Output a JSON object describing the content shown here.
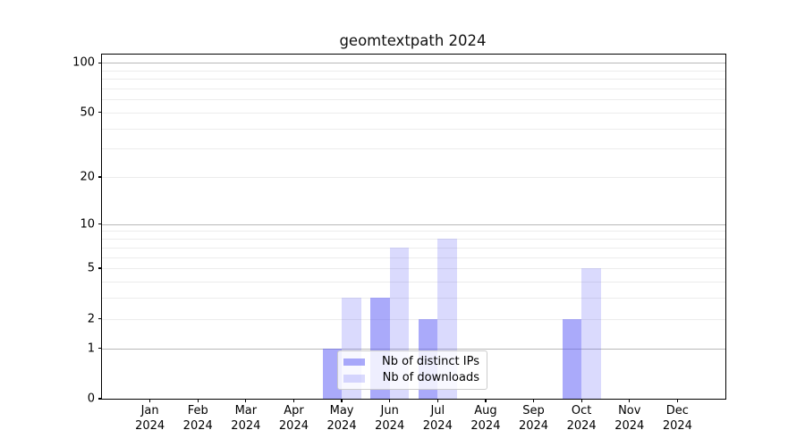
{
  "title": "geomtextpath 2024",
  "colors": {
    "bar_distinct_ips": "rgba(85,85,245,0.5)",
    "bar_downloads": "rgba(85,85,245,0.22)",
    "major_gridline": "#b8b8b8",
    "minor_gridline": "#ececec",
    "spine": "#000000",
    "legend_border": "#cccccc"
  },
  "chart_data": {
    "type": "bar",
    "title": "geomtextpath 2024",
    "categories": [
      "Jan",
      "Feb",
      "Mar",
      "Apr",
      "May",
      "Jun",
      "Jul",
      "Aug",
      "Sep",
      "Oct",
      "Nov",
      "Dec"
    ],
    "category_year": "2024",
    "series": [
      {
        "name": "Nb of distinct IPs",
        "color": "rgba(85,85,245,0.5)",
        "values": [
          0,
          0,
          0,
          0,
          1,
          3,
          2,
          0,
          0,
          2,
          0,
          0
        ]
      },
      {
        "name": "Nb of downloads",
        "color": "rgba(85,85,245,0.22)",
        "values": [
          0,
          0,
          0,
          0,
          3,
          7,
          8,
          0,
          0,
          5,
          0,
          0
        ]
      }
    ],
    "xlabel": "",
    "ylabel": "",
    "y_scale": "log1p",
    "y_ticks": [
      0,
      1,
      2,
      5,
      10,
      20,
      50,
      100
    ],
    "y_major_gridlines": [
      1,
      10,
      100
    ],
    "y_minor_gridlines": [
      2,
      3,
      4,
      5,
      6,
      7,
      8,
      9,
      20,
      30,
      40,
      50,
      60,
      70,
      80,
      90
    ],
    "ylim": [
      0,
      112
    ],
    "grid": true,
    "legend_position": "lower center inside plot"
  }
}
